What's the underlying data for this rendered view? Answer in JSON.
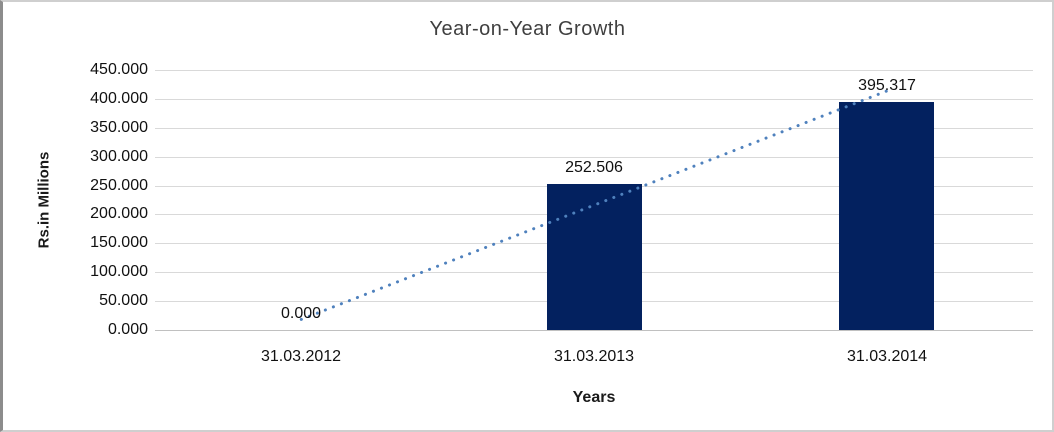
{
  "chart_data": {
    "type": "bar",
    "title": "Year-on-Year Growth",
    "categories": [
      "31.03.2012",
      "31.03.2013",
      "31.03.2014"
    ],
    "values": [
      0.0,
      252.506,
      395.317
    ],
    "data_labels": [
      "0.000",
      "252.506",
      "395.317"
    ],
    "xlabel": "Years",
    "ylabel": "Rs.in Millions",
    "ylim": [
      0,
      450
    ],
    "ytick_step": 50,
    "ytick_labels": [
      "0.000",
      "50.000",
      "100.000",
      "150.000",
      "200.000",
      "250.000",
      "300.000",
      "350.000",
      "400.000",
      "450.000"
    ],
    "grid": true,
    "legend": false,
    "trendline": {
      "type": "linear",
      "style": "dotted"
    },
    "colors": {
      "bar": "#03215f",
      "trendline": "#4f81bd",
      "gridline": "#d9d9d9",
      "baseline": "#c0c0c0",
      "title_text": "#3f3f3f",
      "axis_text": "#111111",
      "frame_border": "#cfcfcf",
      "frame_border_left": "#8c8c8c",
      "background": "#ffffff"
    }
  }
}
